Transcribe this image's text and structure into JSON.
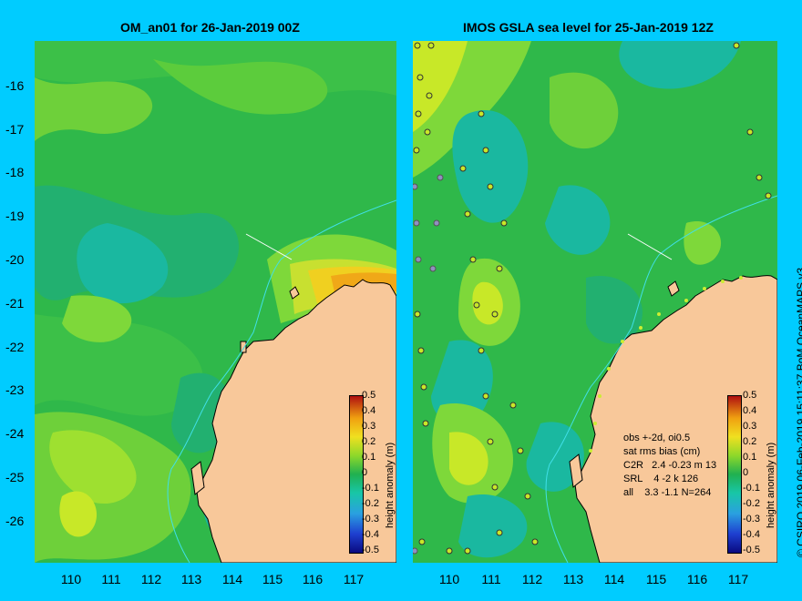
{
  "left_panel": {
    "title": "OM_an01 for 26-Jan-2019 00Z",
    "colorbar": {
      "ticks": [
        "0.5",
        "0.4",
        "0.3",
        "0.2",
        "0.1",
        "0",
        "-0.1",
        "-0.2",
        "-0.3",
        "-0.4",
        "-0.5"
      ],
      "label": "height anomaly (m)"
    }
  },
  "right_panel": {
    "title": "IMOS GSLA sea level  for 25-Jan-2019 12Z",
    "colorbar": {
      "ticks": [
        "0.5",
        "0.4",
        "0.3",
        "0.2",
        "0.1",
        "0",
        "-0.1",
        "-0.2",
        "-0.3",
        "-0.4",
        "-0.5"
      ],
      "label": "height anomaly (m)"
    },
    "stats": [
      "obs +-2d, oi0.5",
      "sat rms bias (cm)",
      "C2R   2.4 -0.23 m 13",
      "SRL    4 -2 k 126",
      "all    3.3 -1.1 N=264"
    ]
  },
  "y_ticks": [
    "-16",
    "-17",
    "-18",
    "-19",
    "-20",
    "-21",
    "-22",
    "-23",
    "-24",
    "-25",
    "-26"
  ],
  "x_ticks": [
    "110",
    "111",
    "112",
    "113",
    "114",
    "115",
    "116",
    "117"
  ],
  "credit": "© CSIRO 2019   06-Feb-2019 15:11:37 BoM OceanMAPS v3",
  "colors": {
    "background": "#00ccff",
    "land": "#f8c89a",
    "sea_base": "#2fb84a",
    "sea_light": "#7ed83a",
    "sea_cool": "#18b898"
  }
}
